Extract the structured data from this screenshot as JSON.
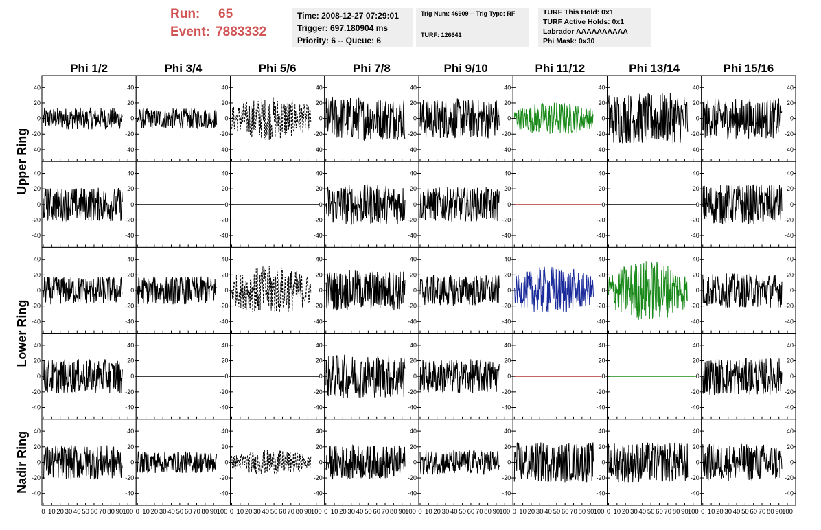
{
  "header": {
    "run_label": "Run:",
    "run_value": "65",
    "event_label": "Event:",
    "event_value": "7883332",
    "time_line": "Time: 2008-12-27 07:29:01",
    "trigger_line": "Trigger: 697.180904 ms",
    "priority_line": "Priority: 6 -- Queue: 6",
    "trig_line": "Trig Num: 46909 -- Trig Type: RF",
    "turf_line": "TURF: 126641",
    "turf_hold": "TURF This Hold: 0x1",
    "turf_active": "TURF Active Holds: 0x1",
    "labrador": "Labrador AAAAAAAAAA",
    "phi_mask": "Phi Mask: 0x30"
  },
  "chart_data": {
    "type": "line",
    "columns": [
      "Phi 1/2",
      "Phi 3/4",
      "Phi 5/6",
      "Phi 7/8",
      "Phi 9/10",
      "Phi 11/12",
      "Phi 13/14",
      "Phi 15/16"
    ],
    "rings": [
      "Upper Ring",
      "Lower Ring",
      "Nadir Ring"
    ],
    "xlim": [
      0,
      100
    ],
    "ylim": [
      -50,
      50
    ],
    "y_ticks": [
      -40,
      -20,
      0,
      20,
      40
    ],
    "x_tick_labels": [
      "0",
      "10",
      "20",
      "30",
      "40",
      "50",
      "60",
      "70",
      "80",
      "90",
      "100"
    ],
    "x_axis_text": "0 10 20 30 40 50 60 70 80 90100",
    "colors": {
      "normal": "#000000",
      "green": "#1a8a1a",
      "blue": "#1a2a9a",
      "red": "#b03030"
    },
    "panels": [
      {
        "row": 0,
        "col": 0,
        "style": "normal",
        "amplitude": 14,
        "color": "#000000"
      },
      {
        "row": 0,
        "col": 1,
        "style": "normal",
        "amplitude": 13,
        "color": "#000000"
      },
      {
        "row": 0,
        "col": 2,
        "style": "dashed",
        "amplitude": 28,
        "color": "#000000"
      },
      {
        "row": 0,
        "col": 3,
        "style": "normal",
        "amplitude": 28,
        "color": "#000000"
      },
      {
        "row": 0,
        "col": 4,
        "style": "normal",
        "amplitude": 26,
        "color": "#000000"
      },
      {
        "row": 0,
        "col": 5,
        "style": "normal",
        "amplitude": 22,
        "color": "#1a8a1a"
      },
      {
        "row": 0,
        "col": 6,
        "style": "normal",
        "amplitude": 33,
        "color": "#000000"
      },
      {
        "row": 0,
        "col": 7,
        "style": "normal",
        "amplitude": 26,
        "color": "#000000"
      },
      {
        "row": 1,
        "col": 0,
        "style": "normal",
        "amplitude": 22,
        "color": "#000000"
      },
      {
        "row": 1,
        "col": 1,
        "style": "flat",
        "amplitude": 0,
        "color": "#000000"
      },
      {
        "row": 1,
        "col": 2,
        "style": "flat",
        "amplitude": 0,
        "color": "#000000"
      },
      {
        "row": 1,
        "col": 3,
        "style": "normal",
        "amplitude": 26,
        "color": "#000000"
      },
      {
        "row": 1,
        "col": 4,
        "style": "normal",
        "amplitude": 22,
        "color": "#000000"
      },
      {
        "row": 1,
        "col": 5,
        "style": "flat",
        "amplitude": 0,
        "color": "#b03030"
      },
      {
        "row": 1,
        "col": 6,
        "style": "flat",
        "amplitude": 0,
        "color": "#000000"
      },
      {
        "row": 1,
        "col": 7,
        "style": "normal",
        "amplitude": 26,
        "color": "#000000"
      },
      {
        "row": 2,
        "col": 0,
        "style": "normal",
        "amplitude": 18,
        "color": "#000000"
      },
      {
        "row": 2,
        "col": 1,
        "style": "normal",
        "amplitude": 18,
        "color": "#000000"
      },
      {
        "row": 2,
        "col": 2,
        "style": "dashed",
        "amplitude": 32,
        "color": "#000000"
      },
      {
        "row": 2,
        "col": 3,
        "style": "normal",
        "amplitude": 26,
        "color": "#000000"
      },
      {
        "row": 2,
        "col": 4,
        "style": "normal",
        "amplitude": 20,
        "color": "#000000"
      },
      {
        "row": 2,
        "col": 5,
        "style": "normal",
        "amplitude": 32,
        "color": "#1a2a9a"
      },
      {
        "row": 2,
        "col": 6,
        "style": "normal",
        "amplitude": 40,
        "color": "#1a8a1a"
      },
      {
        "row": 2,
        "col": 7,
        "style": "normal",
        "amplitude": 22,
        "color": "#000000"
      },
      {
        "row": 3,
        "col": 0,
        "style": "normal",
        "amplitude": 22,
        "color": "#000000"
      },
      {
        "row": 3,
        "col": 1,
        "style": "flat",
        "amplitude": 0,
        "color": "#000000"
      },
      {
        "row": 3,
        "col": 2,
        "style": "flat",
        "amplitude": 0,
        "color": "#000000"
      },
      {
        "row": 3,
        "col": 3,
        "style": "normal",
        "amplitude": 28,
        "color": "#000000"
      },
      {
        "row": 3,
        "col": 4,
        "style": "normal",
        "amplitude": 22,
        "color": "#000000"
      },
      {
        "row": 3,
        "col": 5,
        "style": "flat",
        "amplitude": 0,
        "color": "#b03030"
      },
      {
        "row": 3,
        "col": 6,
        "style": "flat",
        "amplitude": 0,
        "color": "#1a8a1a"
      },
      {
        "row": 3,
        "col": 7,
        "style": "normal",
        "amplitude": 24,
        "color": "#000000"
      },
      {
        "row": 4,
        "col": 0,
        "style": "normal",
        "amplitude": 22,
        "color": "#000000"
      },
      {
        "row": 4,
        "col": 1,
        "style": "normal",
        "amplitude": 14,
        "color": "#000000"
      },
      {
        "row": 4,
        "col": 2,
        "style": "dashed",
        "amplitude": 16,
        "color": "#000000"
      },
      {
        "row": 4,
        "col": 3,
        "style": "normal",
        "amplitude": 22,
        "color": "#000000"
      },
      {
        "row": 4,
        "col": 4,
        "style": "normal",
        "amplitude": 16,
        "color": "#000000"
      },
      {
        "row": 4,
        "col": 5,
        "style": "normal",
        "amplitude": 26,
        "color": "#000000"
      },
      {
        "row": 4,
        "col": 6,
        "style": "normal",
        "amplitude": 26,
        "color": "#000000"
      },
      {
        "row": 4,
        "col": 7,
        "style": "normal",
        "amplitude": 24,
        "color": "#000000"
      }
    ]
  }
}
